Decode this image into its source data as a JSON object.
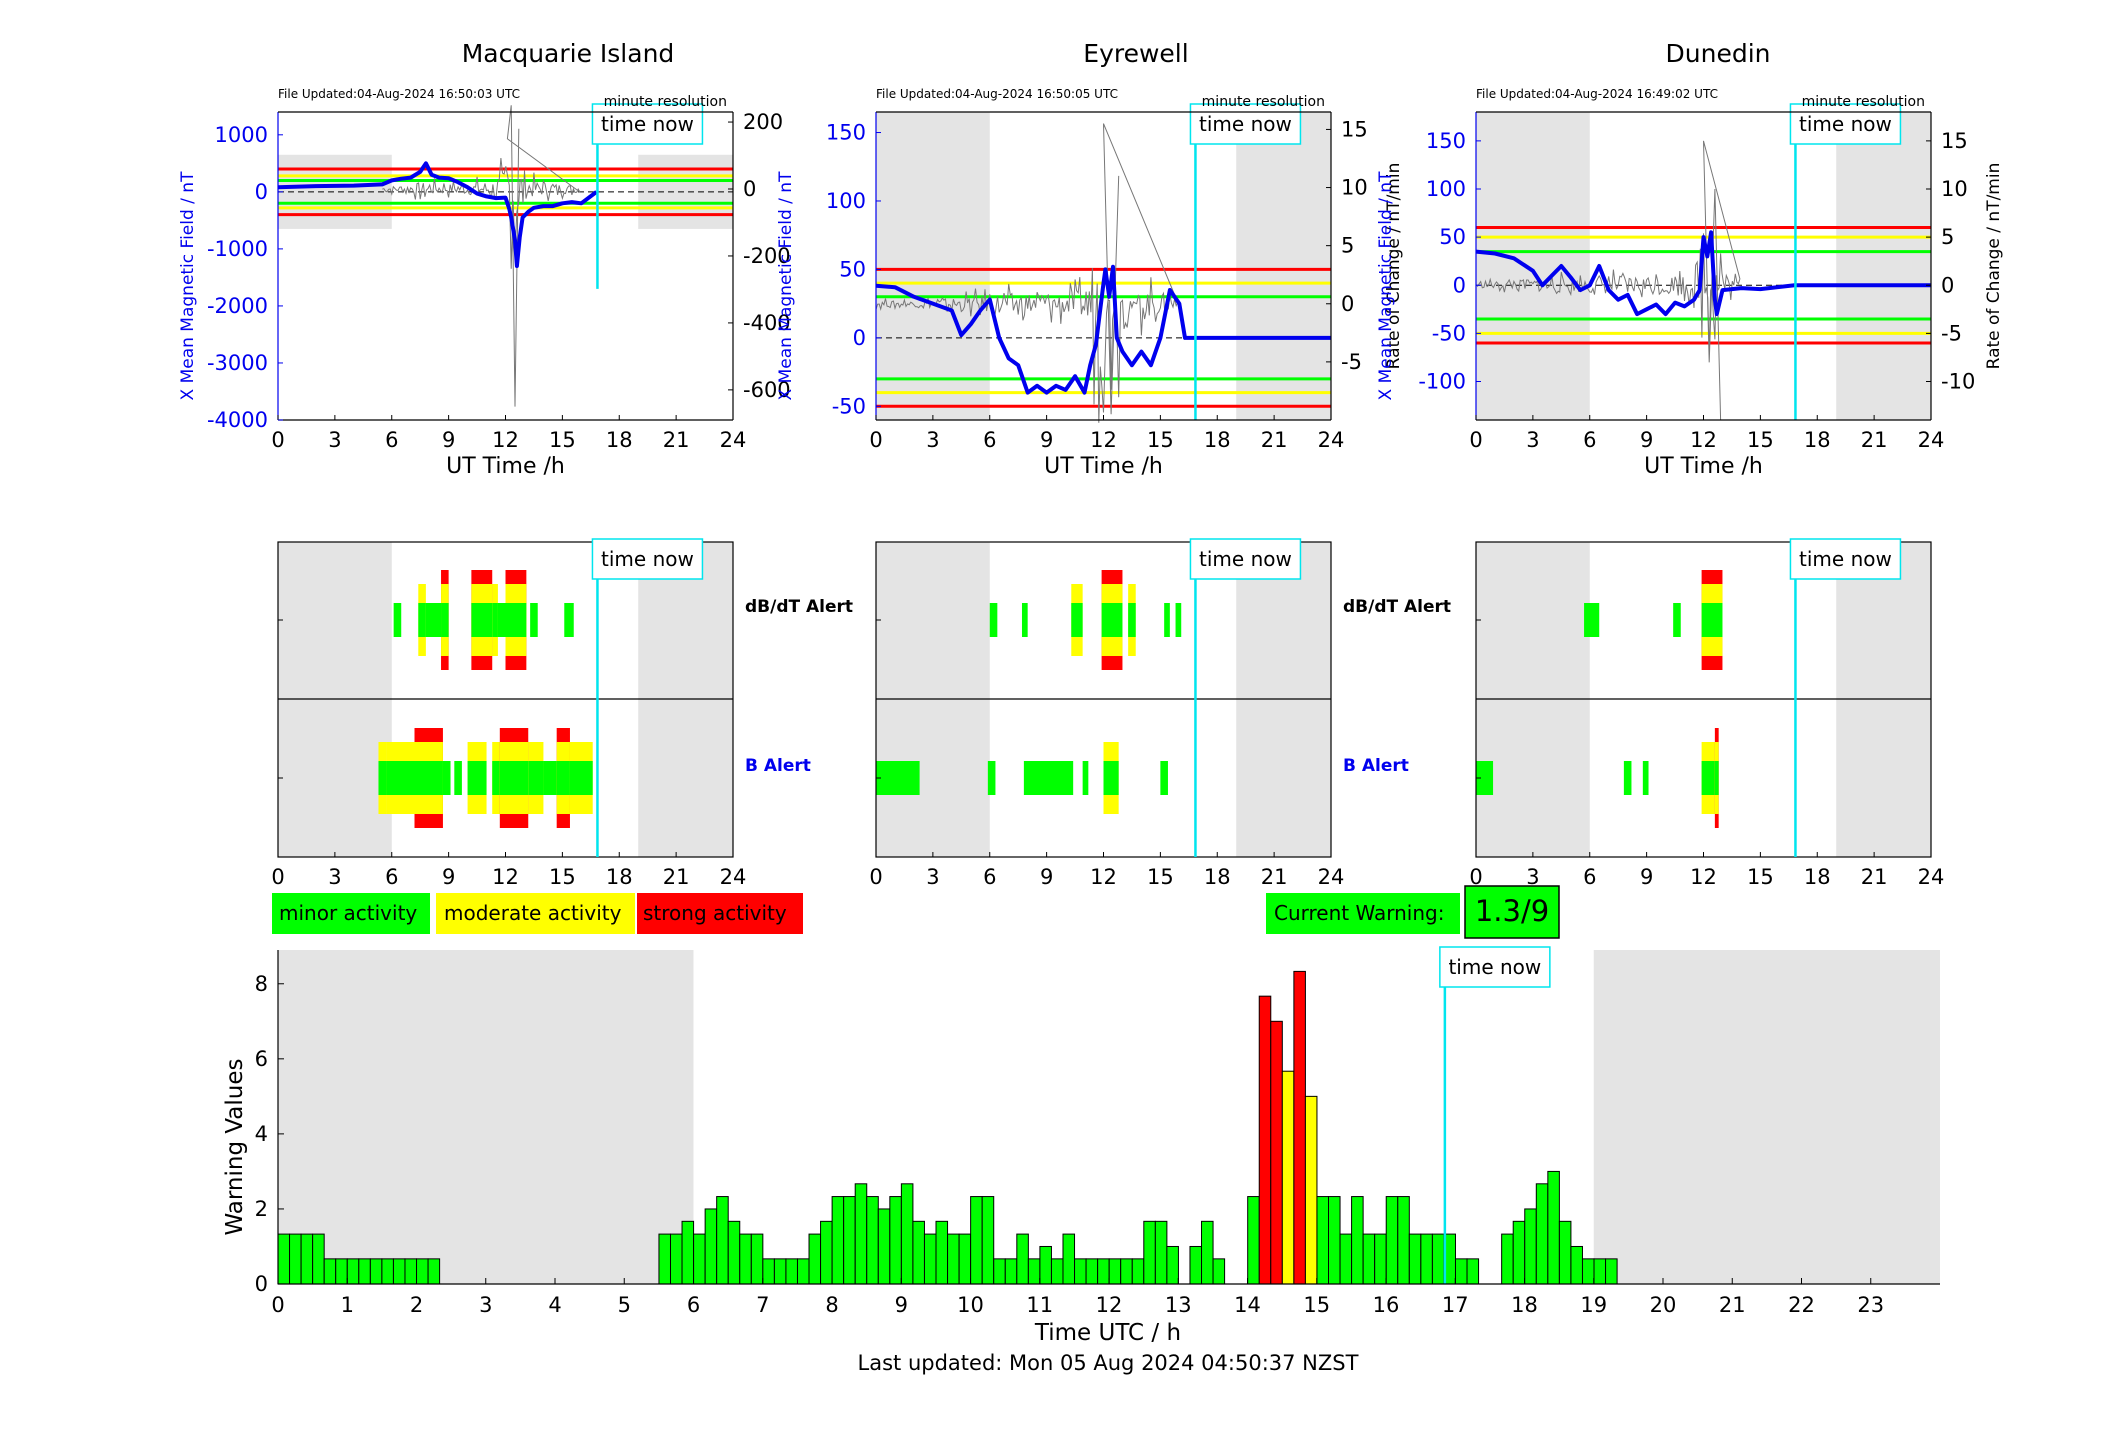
{
  "stations": [
    {
      "name": "Macquarie Island",
      "file_updated": "File Updated:04-Aug-2024 16:50:03 UTC",
      "resolution": "minute resolution",
      "time_now_label": "time now",
      "time_now_h": 16.85,
      "night_shading_h": [
        [
          0,
          6
        ],
        [
          19,
          24
        ]
      ],
      "field_axis": {
        "label": "X Mean Magnetic Field / nT",
        "ylim": [
          -4000,
          1400
        ],
        "ticks": [
          -4000,
          -3000,
          -2000,
          -1000,
          0,
          1000
        ]
      },
      "rate_axis": {
        "label": "",
        "ylim": [
          -690,
          230
        ],
        "ticks": [
          -600,
          -400,
          -200,
          0,
          200
        ]
      },
      "b_thresholds": {
        "red": 400,
        "yellow": 280,
        "green": 200
      },
      "xlabel": "UT Time /h",
      "xticks": [
        0,
        3,
        6,
        9,
        12,
        15,
        18,
        21,
        24
      ],
      "mean_field_trace": [
        [
          0,
          80
        ],
        [
          2,
          100
        ],
        [
          4,
          110
        ],
        [
          5.5,
          130
        ],
        [
          6,
          200
        ],
        [
          6.5,
          230
        ],
        [
          7,
          250
        ],
        [
          7.5,
          350
        ],
        [
          7.8,
          500
        ],
        [
          8.1,
          300
        ],
        [
          8.5,
          250
        ],
        [
          9,
          240
        ],
        [
          9.5,
          170
        ],
        [
          10,
          80
        ],
        [
          10.5,
          -30
        ],
        [
          11,
          -80
        ],
        [
          11.5,
          -110
        ],
        [
          12,
          -100
        ],
        [
          12.2,
          -300
        ],
        [
          12.3,
          -450
        ],
        [
          12.5,
          -850
        ],
        [
          12.6,
          -1300
        ],
        [
          12.75,
          -800
        ],
        [
          12.9,
          -450
        ],
        [
          13.2,
          -350
        ],
        [
          13.5,
          -280
        ],
        [
          14,
          -250
        ],
        [
          14.5,
          -250
        ],
        [
          15,
          -200
        ],
        [
          15.5,
          -180
        ],
        [
          16,
          -200
        ],
        [
          16.8,
          0
        ]
      ],
      "rate_envelope": [
        [
          5.5,
          15
        ],
        [
          6.5,
          20
        ],
        [
          7.5,
          40
        ],
        [
          8.5,
          30
        ],
        [
          9.5,
          30
        ],
        [
          10.5,
          40
        ],
        [
          11.5,
          60
        ],
        [
          12.1,
          150
        ],
        [
          12.3,
          250
        ],
        [
          12.5,
          -650
        ],
        [
          12.7,
          180
        ],
        [
          13,
          60
        ],
        [
          14,
          40
        ],
        [
          15,
          30
        ],
        [
          16,
          20
        ]
      ]
    },
    {
      "name": "Eyrewell",
      "file_updated": "File Updated:04-Aug-2024 16:50:05 UTC",
      "resolution": "minute resolution",
      "time_now_label": "time now",
      "time_now_h": 16.85,
      "night_shading_h": [
        [
          0,
          6
        ],
        [
          19,
          24
        ]
      ],
      "field_axis": {
        "label": "X Mean Magnetic Field / nT",
        "ylim": [
          -60,
          165
        ],
        "ticks": [
          -50,
          0,
          50,
          100,
          150
        ]
      },
      "rate_axis": {
        "label": "Rate of Change / nT/min",
        "ylim": [
          -10,
          16.5
        ],
        "ticks": [
          -5,
          0,
          5,
          10,
          15
        ]
      },
      "b_thresholds": {
        "red": 50,
        "yellow": 40,
        "green": 30
      },
      "xlabel": "UT Time /h",
      "xticks": [
        0,
        3,
        6,
        9,
        12,
        15,
        18,
        21,
        24
      ],
      "mean_field_trace": [
        [
          0,
          38
        ],
        [
          1,
          37
        ],
        [
          2,
          30
        ],
        [
          3,
          25
        ],
        [
          4,
          20
        ],
        [
          4.5,
          2
        ],
        [
          5,
          10
        ],
        [
          5.5,
          20
        ],
        [
          6,
          28
        ],
        [
          6.5,
          0
        ],
        [
          7,
          -15
        ],
        [
          7.5,
          -20
        ],
        [
          8,
          -40
        ],
        [
          8.5,
          -35
        ],
        [
          9,
          -40
        ],
        [
          9.5,
          -35
        ],
        [
          10,
          -38
        ],
        [
          10.5,
          -28
        ],
        [
          11,
          -40
        ],
        [
          11.3,
          -20
        ],
        [
          11.6,
          -5
        ],
        [
          12,
          40
        ],
        [
          12.1,
          50
        ],
        [
          12.3,
          30
        ],
        [
          12.5,
          52
        ],
        [
          12.7,
          0
        ],
        [
          13,
          -10
        ],
        [
          13.5,
          -20
        ],
        [
          14,
          -10
        ],
        [
          14.5,
          -20
        ],
        [
          15,
          0
        ],
        [
          15.5,
          35
        ],
        [
          16,
          25
        ],
        [
          16.3,
          0
        ],
        [
          19,
          0
        ],
        [
          24,
          0
        ]
      ],
      "rate_envelope": [
        [
          0,
          0.5
        ],
        [
          2,
          0.5
        ],
        [
          4,
          1
        ],
        [
          6,
          1.5
        ],
        [
          8,
          2
        ],
        [
          10,
          2
        ],
        [
          11,
          2.5
        ],
        [
          12,
          15.5
        ],
        [
          12.4,
          -9.5
        ],
        [
          12.8,
          11
        ],
        [
          13,
          -5
        ],
        [
          14,
          3
        ],
        [
          15,
          2
        ],
        [
          16,
          1
        ]
      ]
    },
    {
      "name": "Dunedin",
      "file_updated": "File Updated:04-Aug-2024 16:49:02 UTC",
      "resolution": "minute resolution",
      "time_now_label": "time now",
      "time_now_h": 16.85,
      "night_shading_h": [
        [
          0,
          6
        ],
        [
          19,
          24
        ]
      ],
      "field_axis": {
        "label": "X Mean Magnetic Field / nT",
        "ylim": [
          -140,
          180
        ],
        "ticks": [
          -100,
          -50,
          0,
          50,
          100,
          150
        ]
      },
      "rate_axis": {
        "label": "Rate of Change / nT/min",
        "ylim": [
          -14,
          18
        ],
        "ticks": [
          -10,
          -5,
          0,
          5,
          10,
          15
        ]
      },
      "b_thresholds": {
        "red": 60,
        "yellow": 50,
        "green": 35
      },
      "xlabel": "UT Time /h",
      "xticks": [
        0,
        3,
        6,
        9,
        12,
        15,
        18,
        21,
        24
      ],
      "mean_field_trace": [
        [
          0,
          35
        ],
        [
          1,
          33
        ],
        [
          2,
          28
        ],
        [
          3,
          15
        ],
        [
          3.5,
          0
        ],
        [
          4,
          10
        ],
        [
          4.5,
          20
        ],
        [
          5,
          8
        ],
        [
          5.5,
          -5
        ],
        [
          6,
          0
        ],
        [
          6.5,
          20
        ],
        [
          7,
          -5
        ],
        [
          7.5,
          -15
        ],
        [
          8,
          -10
        ],
        [
          8.5,
          -30
        ],
        [
          9,
          -25
        ],
        [
          9.5,
          -20
        ],
        [
          10,
          -30
        ],
        [
          10.5,
          -18
        ],
        [
          11,
          -22
        ],
        [
          11.5,
          -15
        ],
        [
          11.8,
          -5
        ],
        [
          12,
          50
        ],
        [
          12.2,
          30
        ],
        [
          12.4,
          55
        ],
        [
          12.6,
          -15
        ],
        [
          12.7,
          -30
        ],
        [
          13,
          -5
        ],
        [
          14,
          -3
        ],
        [
          15,
          -4
        ],
        [
          16.8,
          0
        ],
        [
          19,
          0
        ],
        [
          24,
          0
        ]
      ],
      "rate_envelope": [
        [
          0,
          0.5
        ],
        [
          2,
          1
        ],
        [
          4,
          1.5
        ],
        [
          6,
          1.5
        ],
        [
          8,
          2
        ],
        [
          10,
          2
        ],
        [
          11.5,
          2.5
        ],
        [
          12,
          15
        ],
        [
          12.3,
          -8
        ],
        [
          12.6,
          10
        ],
        [
          12.9,
          -14
        ],
        [
          13.2,
          2
        ],
        [
          14,
          1
        ]
      ]
    }
  ],
  "alerts": {
    "dbdt_label": "dB/dT Alert",
    "b_label": "B Alert",
    "xticks": [
      0,
      3,
      6,
      9,
      12,
      15,
      18,
      21,
      24
    ],
    "time_now_label": "time now",
    "panels": [
      {
        "dbdt": [
          [
            6.1,
            6.5,
            "g"
          ],
          [
            7.4,
            7.8,
            "gy"
          ],
          [
            7.8,
            8.6,
            "g"
          ],
          [
            8.6,
            9.0,
            "gyr"
          ],
          [
            10.2,
            11.3,
            "gyr"
          ],
          [
            11.3,
            11.6,
            "gy"
          ],
          [
            11.6,
            12.0,
            "g"
          ],
          [
            12.0,
            13.1,
            "gyr"
          ],
          [
            13.3,
            13.7,
            "g"
          ],
          [
            15.1,
            15.6,
            "g"
          ]
        ],
        "b": [
          [
            5.3,
            5.7,
            "gy"
          ],
          [
            5.7,
            7.2,
            "gy"
          ],
          [
            7.2,
            8.7,
            "gyr"
          ],
          [
            8.7,
            9.1,
            "g"
          ],
          [
            9.3,
            9.7,
            "g"
          ],
          [
            10.0,
            11.0,
            "gy"
          ],
          [
            11.3,
            11.7,
            "gy"
          ],
          [
            11.7,
            13.2,
            "gyr"
          ],
          [
            13.2,
            14.0,
            "gy"
          ],
          [
            14.0,
            14.7,
            "g"
          ],
          [
            14.7,
            15.4,
            "gyr"
          ],
          [
            15.4,
            16.6,
            "gy"
          ]
        ]
      },
      {
        "dbdt": [
          [
            6.0,
            6.4,
            "g"
          ],
          [
            7.7,
            8.0,
            "g"
          ],
          [
            10.3,
            10.9,
            "gy"
          ],
          [
            11.9,
            13.0,
            "gyr"
          ],
          [
            13.3,
            13.7,
            "gy"
          ],
          [
            15.2,
            15.5,
            "g"
          ],
          [
            15.8,
            16.1,
            "g"
          ]
        ],
        "b": [
          [
            0,
            2.3,
            "g"
          ],
          [
            5.9,
            6.3,
            "g"
          ],
          [
            7.8,
            10.4,
            "g"
          ],
          [
            10.9,
            11.2,
            "g"
          ],
          [
            12.0,
            12.8,
            "gy"
          ],
          [
            15.0,
            15.4,
            "g"
          ]
        ]
      },
      {
        "dbdt": [
          [
            5.7,
            6.5,
            "g"
          ],
          [
            10.4,
            10.8,
            "g"
          ],
          [
            11.9,
            13.0,
            "gyr"
          ]
        ],
        "b": [
          [
            0,
            0.9,
            "g"
          ],
          [
            7.8,
            8.2,
            "g"
          ],
          [
            8.8,
            9.1,
            "g"
          ],
          [
            11.9,
            12.6,
            "gy"
          ],
          [
            12.6,
            12.8,
            "gyr"
          ]
        ]
      }
    ]
  },
  "legend": {
    "minor": "minor activity",
    "moderate": "moderate activity",
    "strong": "strong activity",
    "colors": {
      "minor": "#00ff00",
      "moderate": "#ffff00",
      "strong": "#ff0000"
    }
  },
  "current_warning": {
    "label": "Current Warning:",
    "value": "1.3/9"
  },
  "chart_data": {
    "type": "bar",
    "title": "",
    "xlabel": "Time UTC / h",
    "ylabel": "Warning Values",
    "xlim": [
      0,
      24
    ],
    "ylim": [
      0,
      8.9
    ],
    "xticks": [
      0,
      1,
      2,
      3,
      4,
      5,
      6,
      7,
      8,
      9,
      10,
      11,
      12,
      13,
      14,
      15,
      16,
      17,
      18,
      19,
      20,
      21,
      22,
      23
    ],
    "yticks": [
      0,
      2,
      4,
      6,
      8
    ],
    "bin_width_h": 0.1667,
    "time_now_h": 16.85,
    "time_now_label": "time now",
    "shaded_h": [
      [
        0,
        6
      ],
      [
        19,
        24
      ]
    ],
    "bins_start_h": 0,
    "values": [
      1.33,
      1.33,
      1.33,
      1.33,
      0.67,
      0.67,
      0.67,
      0.67,
      0.67,
      0.67,
      0.67,
      0.67,
      0.67,
      0.67,
      0,
      0,
      0,
      0,
      0,
      0,
      0,
      0,
      0,
      0,
      0,
      0,
      0,
      0,
      0,
      0,
      0,
      0,
      0,
      1.33,
      1.33,
      1.67,
      1.33,
      2.0,
      2.33,
      1.67,
      1.33,
      1.33,
      0.67,
      0.67,
      0.67,
      0.67,
      1.33,
      1.67,
      2.33,
      2.33,
      2.67,
      2.33,
      2.0,
      2.33,
      2.67,
      1.67,
      1.33,
      1.67,
      1.33,
      1.33,
      2.33,
      2.33,
      0.67,
      0.67,
      1.33,
      0.67,
      1.0,
      0.67,
      1.33,
      0.67,
      0.67,
      0.67,
      0.67,
      0.67,
      0.67,
      1.67,
      1.67,
      1.0,
      0,
      1.0,
      1.67,
      0.67,
      0,
      0,
      2.33,
      7.67,
      7.0,
      5.67,
      8.33,
      5.0,
      2.33,
      2.33,
      1.33,
      2.33,
      1.33,
      1.33,
      2.33,
      2.33,
      1.33,
      1.33,
      1.33,
      1.33,
      0.67,
      0.67,
      0,
      0,
      1.33,
      1.67,
      2.0,
      2.67,
      3.0,
      1.67,
      1.0,
      0.67,
      0.67,
      0.67
    ],
    "colors": [
      "g",
      "g",
      "g",
      "g",
      "g",
      "g",
      "g",
      "g",
      "g",
      "g",
      "g",
      "g",
      "g",
      "g",
      "g",
      "g",
      "g",
      "g",
      "g",
      "g",
      "g",
      "g",
      "g",
      "g",
      "g",
      "g",
      "g",
      "g",
      "g",
      "g",
      "g",
      "g",
      "g",
      "g",
      "g",
      "g",
      "g",
      "g",
      "g",
      "g",
      "g",
      "g",
      "g",
      "g",
      "g",
      "g",
      "g",
      "g",
      "g",
      "g",
      "g",
      "g",
      "g",
      "g",
      "g",
      "g",
      "g",
      "g",
      "g",
      "g",
      "g",
      "g",
      "g",
      "g",
      "g",
      "g",
      "g",
      "g",
      "g",
      "g",
      "g",
      "g",
      "g",
      "g",
      "g",
      "g",
      "g",
      "g",
      "g",
      "g",
      "g",
      "g",
      "g",
      "g",
      "g",
      "r",
      "r",
      "y",
      "r",
      "y",
      "g",
      "g",
      "g",
      "g",
      "g",
      "g",
      "g",
      "g",
      "g",
      "g",
      "g",
      "g",
      "g",
      "g",
      "g",
      "g",
      "g",
      "g",
      "g",
      "g",
      "g",
      "g",
      "g",
      "g",
      "g",
      "g"
    ]
  },
  "footer": "Last updated: Mon 05 Aug 2024 04:50:37 NZST"
}
